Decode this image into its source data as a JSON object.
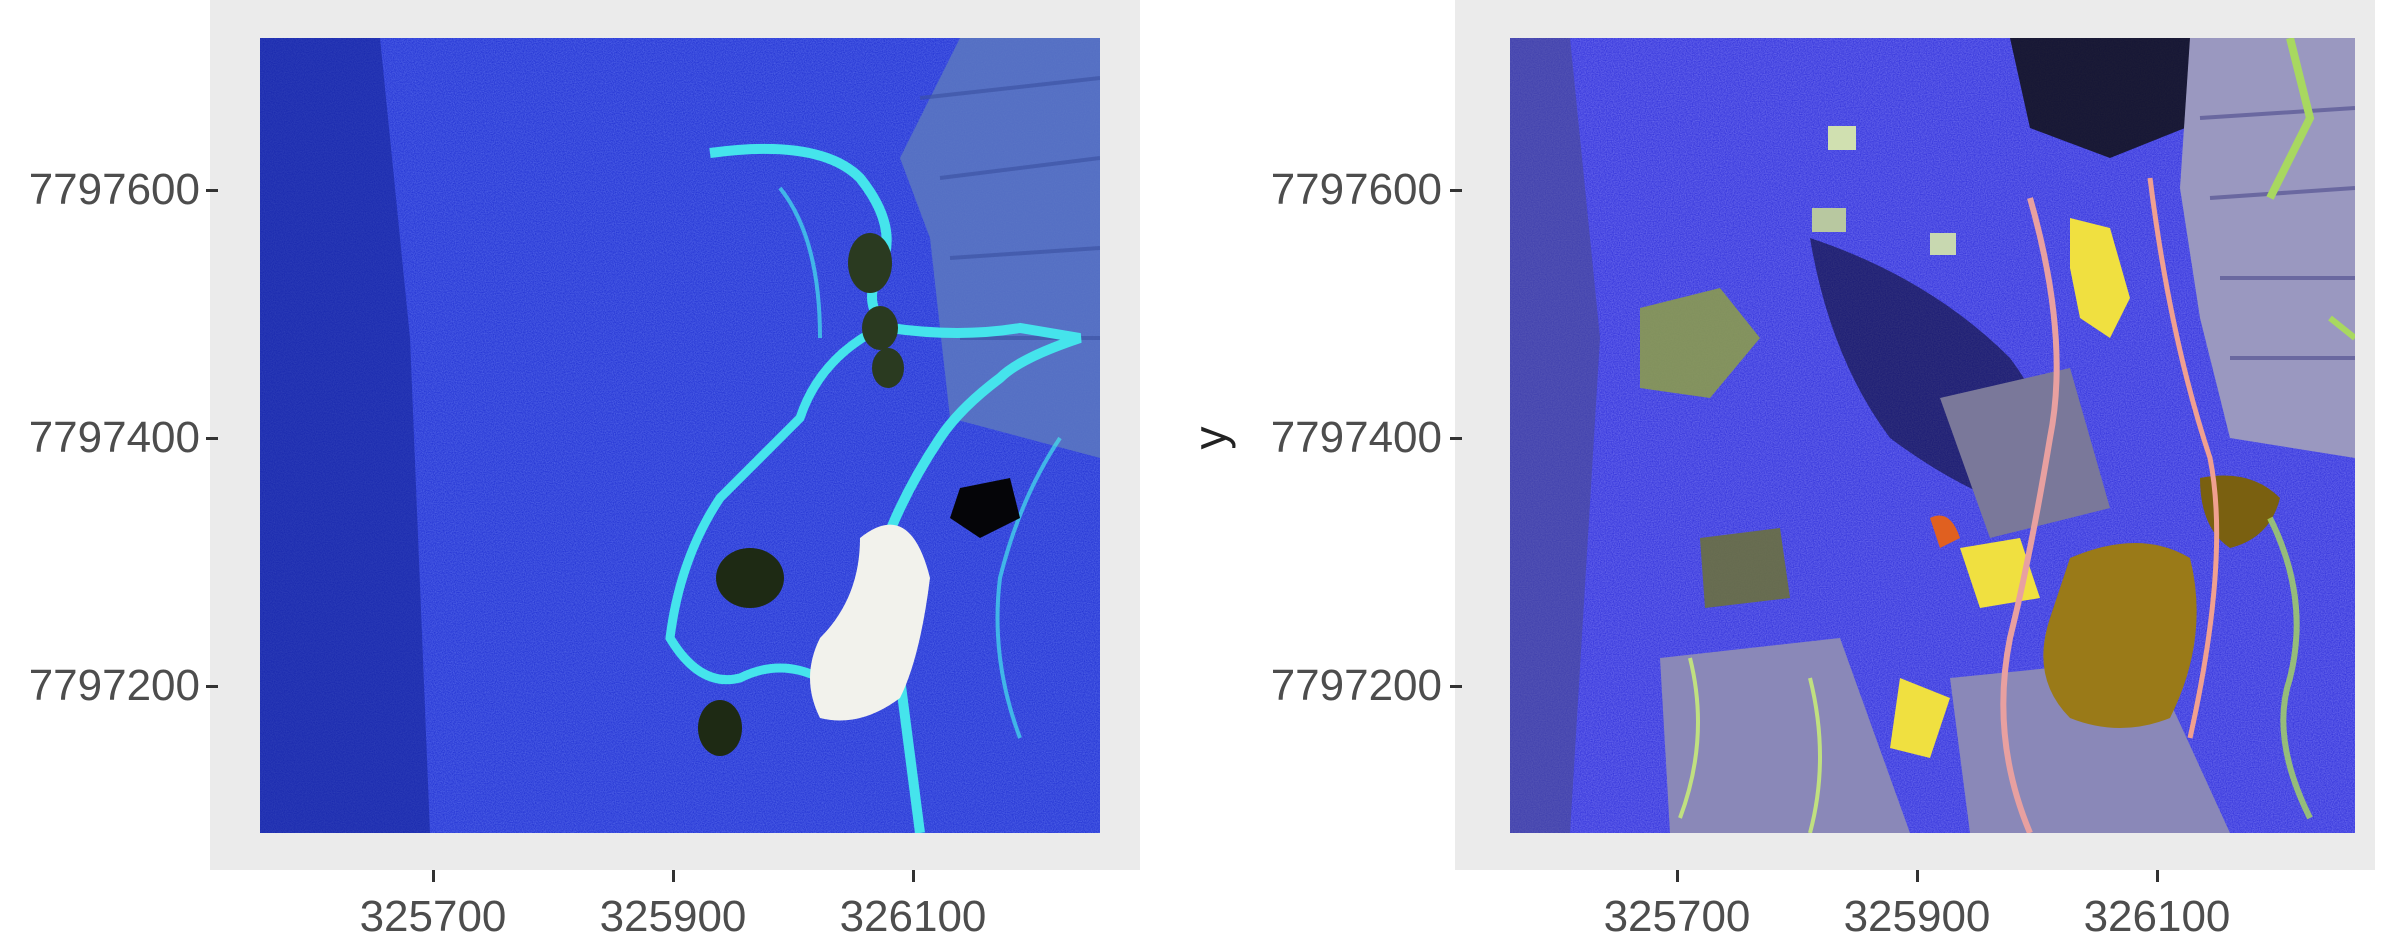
{
  "panels": [
    {
      "id": "left",
      "y_axis_label": "",
      "y_ticks": [
        "7797600",
        "7797400",
        "7797200"
      ],
      "x_ticks": [
        "325700",
        "325900",
        "326100"
      ],
      "palette": {
        "background": "#1a2ad0",
        "water": "#40e0e8",
        "field": "#6e8cc8",
        "bright": "#f2f2ec",
        "dark": "#2a3a20"
      }
    },
    {
      "id": "right",
      "y_axis_label": "y",
      "y_ticks": [
        "7797600",
        "7797400",
        "7797200"
      ],
      "x_ticks": [
        "325700",
        "325900",
        "326100"
      ],
      "palette": {
        "background": "#2a2ad8",
        "yellow": "#f0e040",
        "olive": "#9a7a18",
        "field": "#9a98c0",
        "dark": "#101018",
        "green": "#a8d860"
      }
    }
  ]
}
